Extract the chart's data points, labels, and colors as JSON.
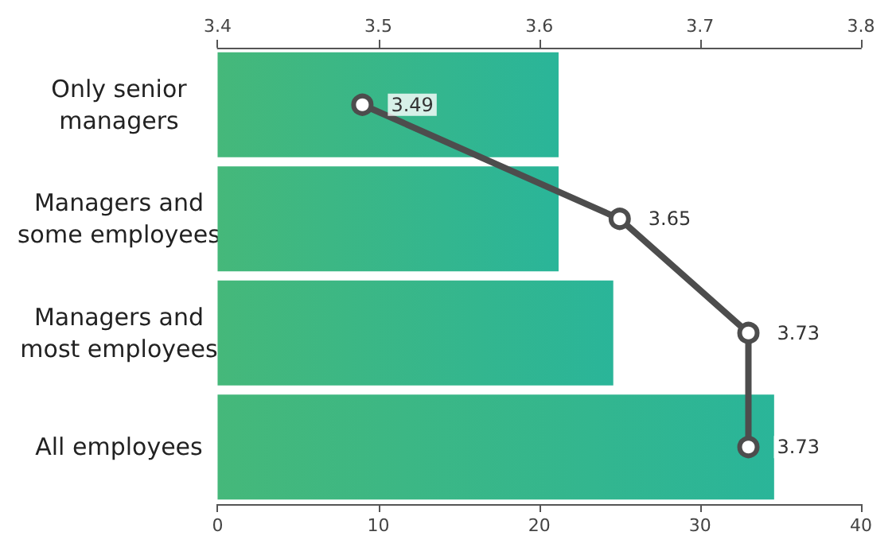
{
  "chart_data": {
    "type": "bar",
    "orientation": "horizontal",
    "categories": [
      "Only senior\nmanagers",
      "Managers and\nsome employees",
      "Managers and\nmost employees",
      "All employees"
    ],
    "xlim": [
      0,
      40
    ],
    "xticks": [
      0,
      10,
      20,
      30,
      40
    ],
    "x2lim": [
      3.4,
      3.8
    ],
    "x2ticks": [
      3.4,
      3.5,
      3.6,
      3.7,
      3.8
    ],
    "grid": false,
    "series": [
      {
        "color": "#2ab599",
        "values": [
          21.2,
          21.2,
          24.6,
          34.6
        ]
      },
      {
        "type": "line",
        "axis": "x2",
        "color": "#4d4d4d",
        "marker": "circle",
        "values": [
          3.49,
          3.65,
          3.73,
          3.73
        ],
        "value_labels": [
          "3.49",
          "3.65",
          "3.73",
          "3.73"
        ]
      }
    ]
  }
}
